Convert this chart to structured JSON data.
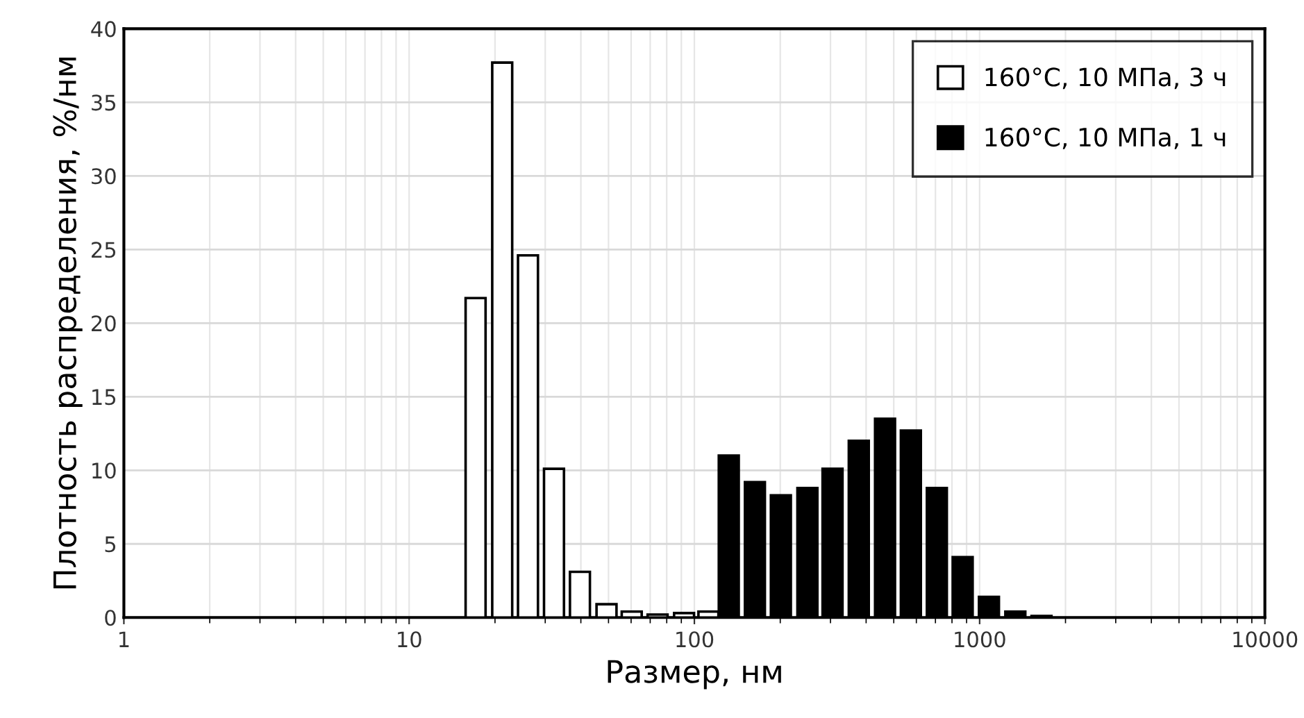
{
  "chart_data": {
    "type": "bar",
    "xlabel": "Размер, нм",
    "ylabel": "Плотность распределения, %/нм",
    "log": "x",
    "xlim": [
      1,
      10000
    ],
    "xticks": [
      1,
      10,
      100,
      1000,
      10000
    ],
    "ylim": [
      0,
      40
    ],
    "yticks": [
      0,
      5,
      10,
      15,
      20,
      25,
      30,
      35,
      40
    ],
    "grid": true,
    "legend": "top right",
    "series": [
      {
        "name": "160°C, 10 МПа, 3 ч",
        "color": "#ffffff",
        "x": [
          17.1,
          21.2,
          26.1,
          32.2,
          39.7,
          49.2,
          60.3,
          74.3,
          92,
          112
        ],
        "values": [
          21.7,
          37.7,
          24.6,
          10.1,
          3.1,
          0.9,
          0.4,
          0.2,
          0.3,
          0.4
        ]
      },
      {
        "name": "160°C, 10 МПа, 1 ч",
        "color": "#000000",
        "x": [
          132,
          163,
          201,
          249,
          305,
          377,
          466,
          574,
          708,
          872,
          1078,
          1334,
          1648
        ],
        "values": [
          11.0,
          9.2,
          8.3,
          8.8,
          10.1,
          12.0,
          13.5,
          12.7,
          8.8,
          4.1,
          1.4,
          0.4,
          0.1
        ]
      }
    ]
  }
}
